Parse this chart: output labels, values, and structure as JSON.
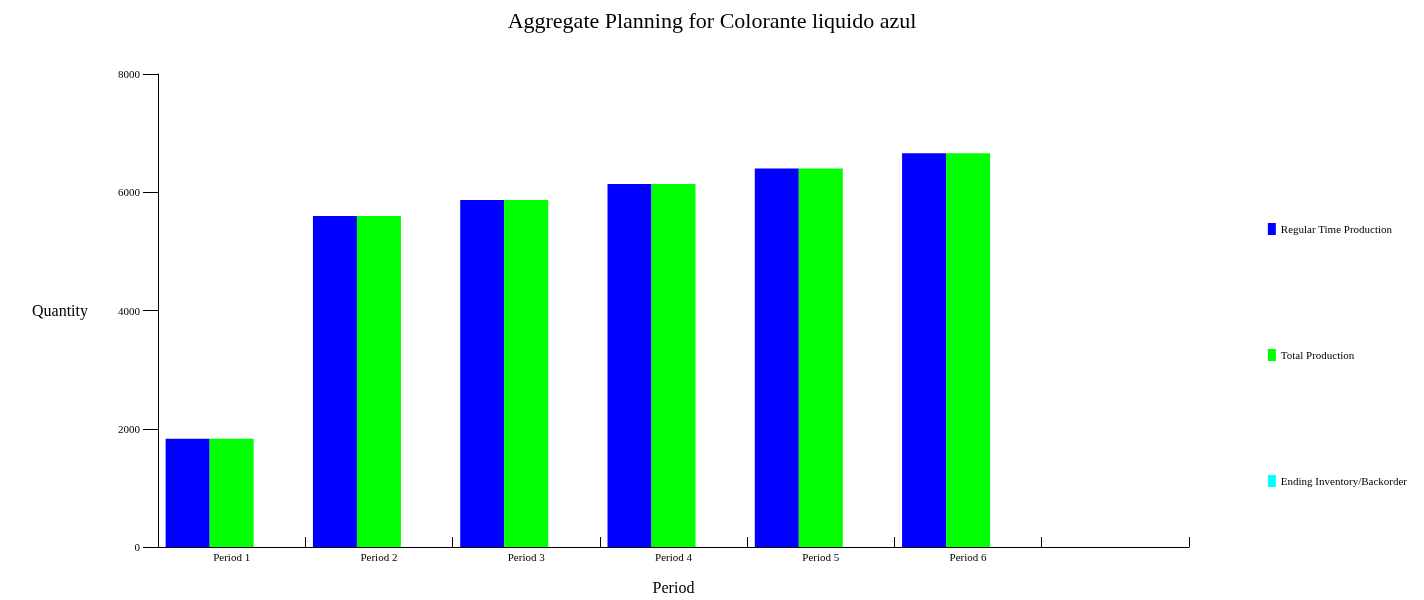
{
  "chart_data": {
    "type": "bar",
    "title": "Aggregate Planning for Colorante liquido azul",
    "xlabel": "Period",
    "ylabel": "Quantity",
    "categories": [
      "Period 1",
      "Period 2",
      "Period 3",
      "Period 4",
      "Period 5",
      "Period 6",
      null
    ],
    "series": [
      {
        "name": "Regular Time Production",
        "color": "#0000ff",
        "values": [
          1830,
          5600,
          5870,
          6140,
          6400,
          6660,
          null
        ]
      },
      {
        "name": "Total Production",
        "color": "#00ff00",
        "values": [
          1830,
          5600,
          5870,
          6140,
          6400,
          6660,
          null
        ]
      },
      {
        "name": "Ending Inventory/Backorder",
        "color": "#00ffff",
        "values": [
          0,
          0,
          0,
          0,
          0,
          0,
          null
        ]
      }
    ],
    "ylim": [
      0,
      8000
    ],
    "yticks": [
      0,
      2000,
      4000,
      6000,
      8000
    ],
    "grid": false,
    "legend": "right"
  }
}
